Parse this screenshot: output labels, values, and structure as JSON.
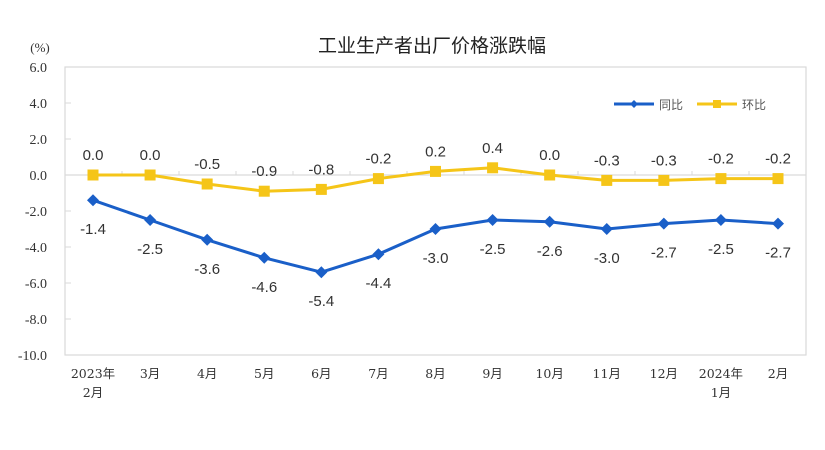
{
  "chart_data": {
    "type": "line",
    "title": "工业生产者出厂价格涨跌幅",
    "ylabel": "(%)",
    "xlabel": "",
    "ylim": [
      -10.0,
      6.0
    ],
    "yticks": [
      "6.0",
      "4.0",
      "2.0",
      "0.0",
      "-2.0",
      "-4.0",
      "-6.0",
      "-8.0",
      "-10.0"
    ],
    "ytick_values": [
      6,
      4,
      2,
      0,
      -2,
      -4,
      -6,
      -8,
      -10
    ],
    "categories": [
      "2023年2月",
      "3月",
      "4月",
      "5月",
      "6月",
      "7月",
      "8月",
      "9月",
      "10月",
      "11月",
      "12月",
      "2024年1月",
      "2月"
    ],
    "category_lines": [
      [
        "2023年",
        "2月"
      ],
      [
        "3月"
      ],
      [
        "4月"
      ],
      [
        "5月"
      ],
      [
        "6月"
      ],
      [
        "7月"
      ],
      [
        "8月"
      ],
      [
        "9月"
      ],
      [
        "10月"
      ],
      [
        "11月"
      ],
      [
        "12月"
      ],
      [
        "2024年",
        "1月"
      ],
      [
        "2月"
      ]
    ],
    "grid": false,
    "legend_position": "top-right",
    "series": [
      {
        "name": "同比",
        "color": "#1a5fc8",
        "marker": "diamond",
        "values": [
          -1.4,
          -2.5,
          -3.6,
          -4.6,
          -5.4,
          -4.4,
          -3.0,
          -2.5,
          -2.6,
          -3.0,
          -2.7,
          -2.5,
          -2.7
        ],
        "labels": [
          "-1.4",
          "-2.5",
          "-3.6",
          "-4.6",
          "-5.4",
          "-4.4",
          "-3.0",
          "-2.5",
          "-2.6",
          "-3.0",
          "-2.7",
          "-2.5",
          "-2.7"
        ],
        "label_position": "below"
      },
      {
        "name": "环比",
        "color": "#f5c518",
        "marker": "square",
        "values": [
          0.0,
          0.0,
          -0.5,
          -0.9,
          -0.8,
          -0.2,
          0.2,
          0.4,
          0.0,
          -0.3,
          -0.3,
          -0.2,
          -0.2
        ],
        "labels": [
          "0.0",
          "0.0",
          "-0.5",
          "-0.9",
          "-0.8",
          "-0.2",
          "0.2",
          "0.4",
          "0.0",
          "-0.3",
          "-0.3",
          "-0.2",
          "-0.2"
        ],
        "label_position": "above"
      }
    ]
  },
  "colors": {
    "axis": "#d9d9d9",
    "text": "#333333"
  }
}
